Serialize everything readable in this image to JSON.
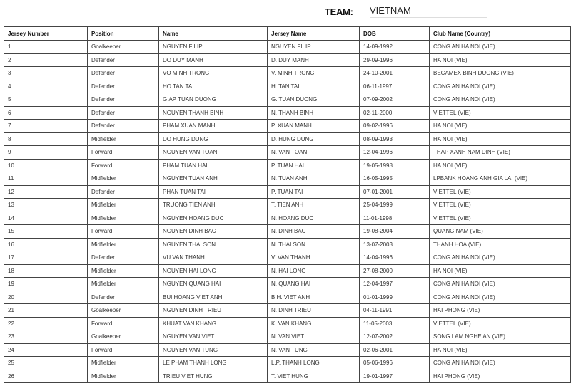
{
  "team": {
    "label": "TEAM:",
    "value": "VIETNAM"
  },
  "table": {
    "headers": [
      "Jersey Number",
      "Position",
      "Name",
      "Jersey Name",
      "DOB",
      "Club Name (Country)"
    ],
    "rows": [
      [
        "1",
        "Goalkeeper",
        "NGUYEN FILIP",
        "NGUYEN FILIP",
        "14-09-1992",
        "CONG AN HA NOI (VIE)"
      ],
      [
        "2",
        "Defender",
        "DO DUY MANH",
        "D. DUY MANH",
        "29-09-1996",
        "HA NOI (VIE)"
      ],
      [
        "3",
        "Defender",
        "VO MINH TRONG",
        "V. MINH TRONG",
        "24-10-2001",
        "BECAMEX BINH DUONG (VIE)"
      ],
      [
        "4",
        "Defender",
        "HO TAN TAI",
        "H. TAN TAI",
        "06-11-1997",
        "CONG AN HA NOI (VIE)"
      ],
      [
        "5",
        "Defender",
        "GIAP TUAN DUONG",
        "G. TUAN DUONG",
        "07-09-2002",
        "CONG AN HA NOI (VIE)"
      ],
      [
        "6",
        "Defender",
        "NGUYEN THANH BINH",
        "N. THANH BINH",
        "02-11-2000",
        "VIETTEL (VIE)"
      ],
      [
        "7",
        "Defender",
        "PHAM XUAN MANH",
        "P. XUAN MANH",
        "09-02-1996",
        "HA NOI (VIE)"
      ],
      [
        "8",
        "Midfielder",
        "DO HUNG DUNG",
        "D. HUNG DUNG",
        "08-09-1993",
        "HA NOI (VIE)"
      ],
      [
        "9",
        "Forward",
        "NGUYEN VAN TOAN",
        "N. VAN TOAN",
        "12-04-1996",
        "THAP XANH NAM DINH (VIE)"
      ],
      [
        "10",
        "Forward",
        "PHAM TUAN HAI",
        "P. TUAN HAI",
        "19-05-1998",
        "HA NOI (VIE)"
      ],
      [
        "11",
        "Midfielder",
        "NGUYEN TUAN ANH",
        "N. TUAN ANH",
        "16-05-1995",
        "LPBANK HOANG ANH GIA LAI (VIE)"
      ],
      [
        "12",
        "Defender",
        "PHAN TUAN TAI",
        "P. TUAN TAI",
        "07-01-2001",
        "VIETTEL (VIE)"
      ],
      [
        "13",
        "Midfielder",
        "TRUONG TIEN ANH",
        "T. TIEN ANH",
        "25-04-1999",
        "VIETTEL (VIE)"
      ],
      [
        "14",
        "Midfielder",
        "NGUYEN HOANG DUC",
        "N. HOANG DUC",
        "11-01-1998",
        "VIETTEL (VIE)"
      ],
      [
        "15",
        "Forward",
        "NGUYEN DINH BAC",
        "N. DINH BAC",
        "19-08-2004",
        "QUANG NAM (VIE)"
      ],
      [
        "16",
        "Midfielder",
        "NGUYEN THAI SON",
        "N. THAI SON",
        "13-07-2003",
        "THANH HOA (VIE)"
      ],
      [
        "17",
        "Defender",
        "VU VAN THANH",
        "V. VAN THANH",
        "14-04-1996",
        "CONG AN HA NOI (VIE)"
      ],
      [
        "18",
        "Midfielder",
        "NGUYEN HAI LONG",
        "N. HAI LONG",
        "27-08-2000",
        "HA NOI (VIE)"
      ],
      [
        "19",
        "Midfielder",
        "NGUYEN QUANG HAI",
        "N. QUANG HAI",
        "12-04-1997",
        "CONG AN HA NOI (VIE)"
      ],
      [
        "20",
        "Defender",
        "BUI HOANG VIET ANH",
        "B.H. VIET ANH",
        "01-01-1999",
        "CONG AN HA NOI (VIE)"
      ],
      [
        "21",
        "Goalkeeper",
        "NGUYEN DINH TRIEU",
        "N. DINH TRIEU",
        "04-11-1991",
        "HAI PHONG (VIE)"
      ],
      [
        "22",
        "Forward",
        "KHUAT VAN KHANG",
        "K. VAN KHANG",
        "11-05-2003",
        "VIETTEL (VIE)"
      ],
      [
        "23",
        "Goalkeeper",
        "NGUYEN VAN VIET",
        "N. VAN VIET",
        "12-07-2002",
        "SONG LAM NGHE AN (VIE)"
      ],
      [
        "24",
        "Forward",
        "NGUYEN VAN TUNG",
        "N. VAN TUNG",
        "02-06-2001",
        "HA NOI (VIE)"
      ],
      [
        "25",
        "Midfielder",
        "LE PHAM THANH LONG",
        "L.P. THANH LONG",
        "05-06-1996",
        "CONG AN HA NOI (VIE)"
      ],
      [
        "26",
        "Midfielder",
        "TRIEU VIET HUNG",
        "T. VIET HUNG",
        "19-01-1997",
        "HAI PHONG (VIE)"
      ]
    ]
  }
}
